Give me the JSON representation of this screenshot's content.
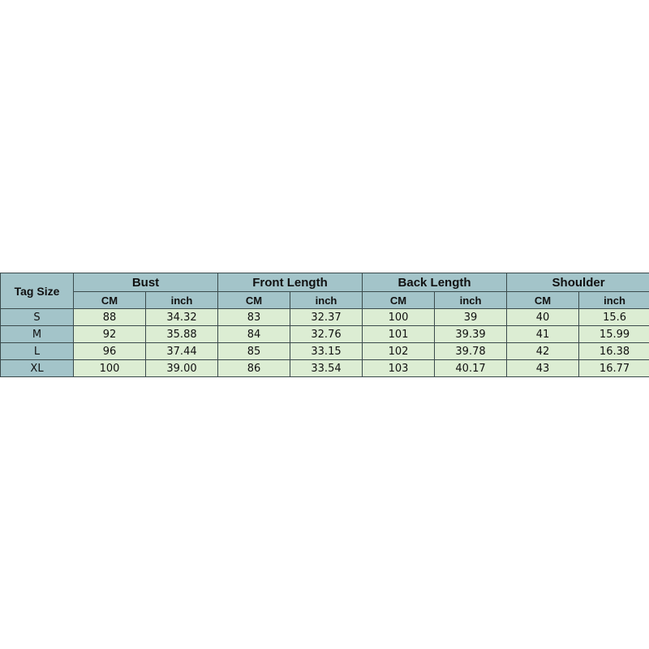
{
  "table": {
    "corner": "Tag Size",
    "groups": [
      "Bust",
      "Front Length",
      "Back Length",
      "Shoulder"
    ],
    "units": [
      "CM",
      "inch"
    ],
    "rows": [
      {
        "size": "S",
        "values": [
          "88",
          "34.32",
          "83",
          "32.37",
          "100",
          "39",
          "40",
          "15.6"
        ]
      },
      {
        "size": "M",
        "values": [
          "92",
          "35.88",
          "84",
          "32.76",
          "101",
          "39.39",
          "41",
          "15.99"
        ]
      },
      {
        "size": "L",
        "values": [
          "96",
          "37.44",
          "85",
          "33.15",
          "102",
          "39.78",
          "42",
          "16.38"
        ]
      },
      {
        "size": "XL",
        "values": [
          "100",
          "39.00",
          "86",
          "33.54",
          "103",
          "40.17",
          "43",
          "16.77"
        ]
      }
    ]
  },
  "colors": {
    "header": "#a3c4c9",
    "cell": "#dcedd3"
  }
}
